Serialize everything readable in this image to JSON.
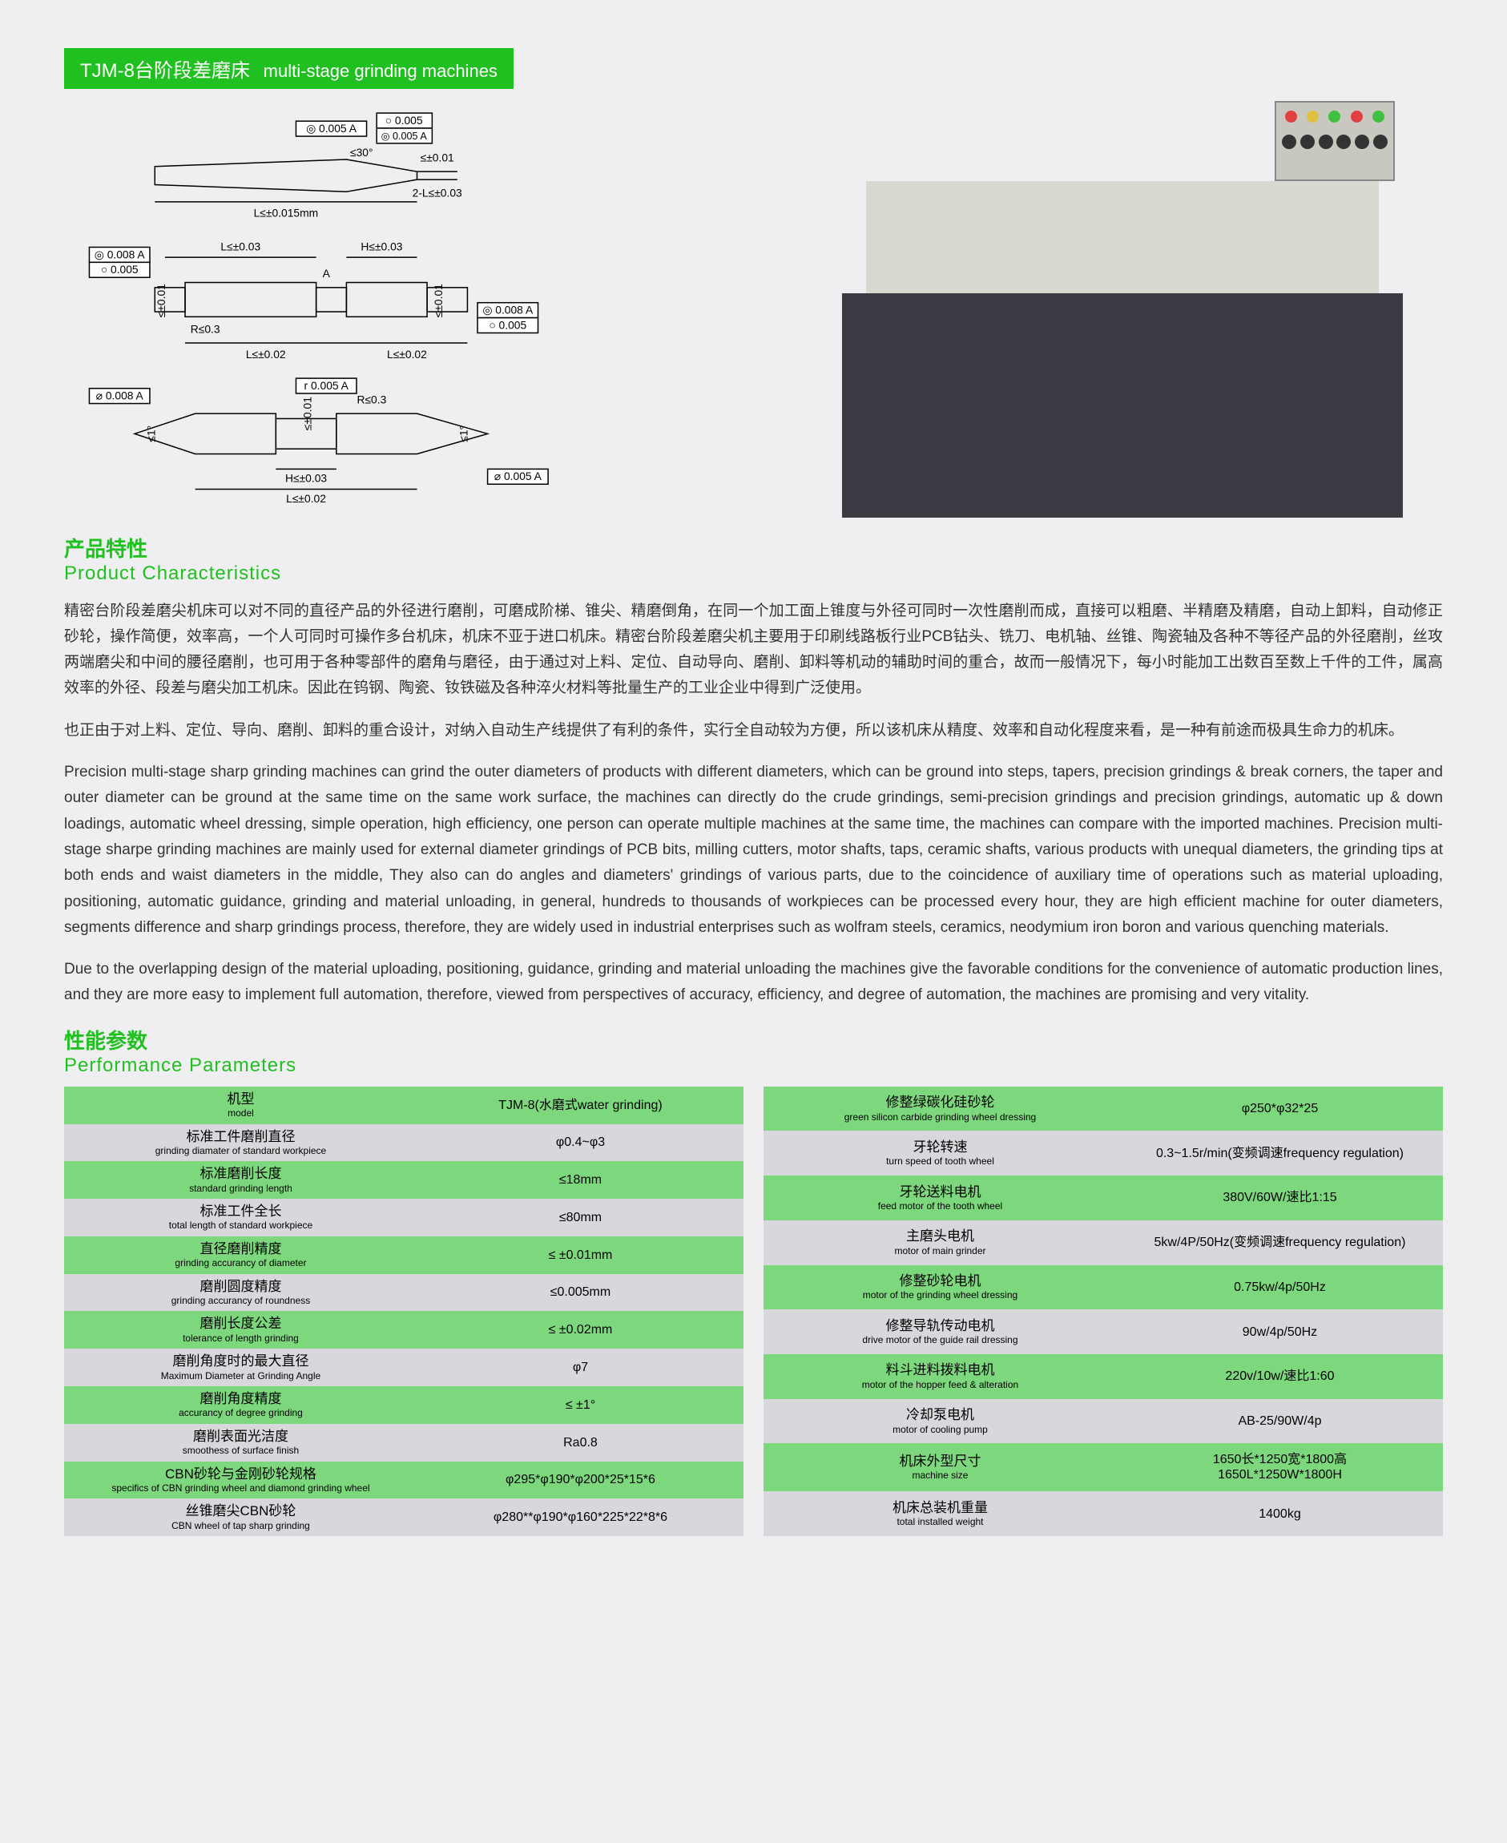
{
  "header": {
    "cn": "TJM-8台阶段差磨床",
    "en": "multi-stage grinding machines"
  },
  "sections": {
    "char_cn": "产品特性",
    "char_en": "Product Characteristics",
    "perf_cn": "性能参数",
    "perf_en": "Performance Parameters"
  },
  "text": {
    "p1": "精密台阶段差磨尖机床可以对不同的直径产品的外径进行磨削，可磨成阶梯、锥尖、精磨倒角，在同一个加工面上锥度与外径可同时一次性磨削而成，直接可以粗磨、半精磨及精磨，自动上卸料，自动修正砂轮，操作简便，效率高，一个人可同时可操作多台机床，机床不亚于进口机床。精密台阶段差磨尖机主要用于印刷线路板行业PCB钻头、铣刀、电机轴、丝锥、陶瓷轴及各种不等径产品的外径磨削，丝攻两端磨尖和中间的腰径磨削，也可用于各种零部件的磨角与磨径，由于通过对上料、定位、自动导向、磨削、卸料等机动的辅助时间的重合，故而一般情况下，每小时能加工出数百至数上千件的工件，属高效率的外径、段差与磨尖加工机床。因此在钨钢、陶瓷、钕铁磁及各种淬火材料等批量生产的工业企业中得到广泛使用。",
    "p2": "也正由于对上料、定位、导向、磨削、卸料的重合设计，对纳入自动生产线提供了有利的条件，实行全自动较为方便，所以该机床从精度、效率和自动化程度来看，是一种有前途而极具生命力的机床。",
    "p3": "Precision multi-stage sharp grinding machines can grind the outer diameters of products with different diameters, which can be ground into steps, tapers, precision grindings & break corners, the taper and outer diameter can be ground at the same time on the same work surface, the machines can directly do the crude grindings, semi-precision grindings and precision grindings, automatic up & down loadings, automatic wheel dressing, simple operation, high efficiency, one person can operate multiple machines at the same time, the machines can compare with the imported machines. Precision multi-stage sharpe grinding machines are mainly used for external diameter grindings of PCB bits, milling cutters, motor shafts, taps, ceramic shafts, various products with unequal diameters, the grinding tips at both ends and waist diameters in the middle, They also can do angles and diameters' grindings of various parts, due to the coincidence of auxiliary time of operations such as material uploading, positioning, automatic guidance, grinding and material unloading, in general, hundreds to thousands of workpieces can be processed every hour, they are high efficient machine for outer diameters, segments difference and sharp grindings process, therefore, they are widely used in industrial enterprises such as wolfram steels, ceramics, neodymium iron boron and various quenching materials.",
    "p4": "Due to the overlapping design of the material uploading, positioning, guidance, grinding and material unloading the machines give the favorable conditions for the convenience of automatic production lines, and they are more easy to implement full automation, therefore, viewed from perspectives of accuracy, efficiency, and degree of automation, the machines are promising and very vitality."
  },
  "table1": [
    {
      "cn": "机型",
      "en": "model",
      "val": "TJM-8(水磨式water grinding)",
      "row": "green"
    },
    {
      "cn": "标准工件磨削直径",
      "en": "grinding diamater of standard workpiece",
      "val": "φ0.4~φ3",
      "row": "grey"
    },
    {
      "cn": "标准磨削长度",
      "en": "standard grinding length",
      "val": "≤18mm",
      "row": "green"
    },
    {
      "cn": "标准工件全长",
      "en": "total length of standard workpiece",
      "val": "≤80mm",
      "row": "grey"
    },
    {
      "cn": "直径磨削精度",
      "en": "grinding accurancy of diameter",
      "val": "≤ ±0.01mm",
      "row": "green"
    },
    {
      "cn": "磨削圆度精度",
      "en": "grinding accurancy of roundness",
      "val": "≤0.005mm",
      "row": "grey"
    },
    {
      "cn": "磨削长度公差",
      "en": "tolerance of length grinding",
      "val": "≤ ±0.02mm",
      "row": "green"
    },
    {
      "cn": "磨削角度时的最大直径",
      "en": "Maximum Diameter at Grinding Angle",
      "val": "φ7",
      "row": "grey"
    },
    {
      "cn": "磨削角度精度",
      "en": "accurancy of degree grinding",
      "val": "≤ ±1°",
      "row": "green"
    },
    {
      "cn": "磨削表面光洁度",
      "en": "smoothess of surface finish",
      "val": "Ra0.8",
      "row": "grey"
    },
    {
      "cn": "CBN砂轮与金刚砂轮规格",
      "en": "specifics of CBN grinding wheel and diamond grinding wheel",
      "val": "φ295*φ190*φ200*25*15*6",
      "row": "green"
    },
    {
      "cn": "丝锥磨尖CBN砂轮",
      "en": "CBN wheel of tap sharp grinding",
      "val": "φ280**φ190*φ160*225*22*8*6",
      "row": "grey"
    }
  ],
  "table2": [
    {
      "cn": "修整绿碳化硅砂轮",
      "en": "green silicon carbide grinding wheel dressing",
      "val": "φ250*φ32*25",
      "row": "green"
    },
    {
      "cn": "牙轮转速",
      "en": "turn speed of tooth wheel",
      "val": "0.3~1.5r/min(变频调速frequency regulation)",
      "row": "grey"
    },
    {
      "cn": "牙轮送料电机",
      "en": "feed motor of the tooth wheel",
      "val": "380V/60W/速比1:15",
      "row": "green"
    },
    {
      "cn": "主磨头电机",
      "en": "motor of main grinder",
      "val": "5kw/4P/50Hz(变频调速frequency regulation)",
      "row": "grey"
    },
    {
      "cn": "修整砂轮电机",
      "en": "motor of the grinding wheel dressing",
      "val": "0.75kw/4p/50Hz",
      "row": "green"
    },
    {
      "cn": "修整导轨传动电机",
      "en": "drive motor of the guide rail dressing",
      "val": "90w/4p/50Hz",
      "row": "grey"
    },
    {
      "cn": "料斗进料拨料电机",
      "en": "motor of the hopper feed & alteration",
      "val": "220v/10w/速比1:60",
      "row": "green"
    },
    {
      "cn": "冷却泵电机",
      "en": "motor of cooling pump",
      "val": "AB-25/90W/4p",
      "row": "grey"
    },
    {
      "cn": "机床外型尺寸",
      "en": "machine size",
      "val": "1650长*1250宽*1800高\n1650L*1250W*1800H",
      "row": "green"
    },
    {
      "cn": "机床总装机重量",
      "en": "total installed weight",
      "val": "1400kg",
      "row": "grey"
    }
  ],
  "diagram_labels": {
    "t1": "◎ 0.005 A",
    "t2": "○ 0.005",
    "t3": "≤30°",
    "t4": "≤±0.01",
    "t5": "2-L≤±0.03",
    "t6": "L≤±0.015mm",
    "t7": "◎ 0.008 A",
    "t8": "○ 0.005",
    "t9": "L≤±0.03",
    "t10": "H≤±0.03",
    "t11": "A",
    "t12": "≤±0.01",
    "t13": "R≤0.3",
    "t14": "L≤±0.02",
    "t15": "≤±0.01",
    "t16": "L≤±0.02",
    "t17": "◎ 0.008 A",
    "t18": "○ 0.005",
    "t19": "⌀ 0.008 A",
    "t20": "r 0.005 A",
    "t21": "≤±0.01",
    "t22": "R≤0.3",
    "t23": "≤1°",
    "t24": "≤1°",
    "t25": "H≤±0.03",
    "t26": "L≤±0.02",
    "t27": "⌀ 0.005 A"
  }
}
